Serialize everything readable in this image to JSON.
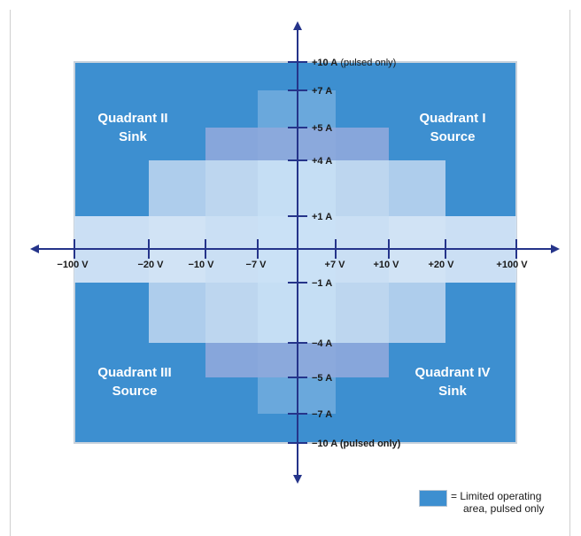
{
  "quadrants": {
    "q1": [
      "Quadrant I",
      "Source"
    ],
    "q2": [
      "Quadrant II",
      "Sink"
    ],
    "q3": [
      "Quadrant III",
      "Source"
    ],
    "q4": [
      "Quadrant IV",
      "Sink"
    ]
  },
  "x_ticks": [
    "−100 V",
    "−20 V",
    "−10 V",
    "−7 V",
    "+7 V",
    "+10 V",
    "+20 V",
    "+100 V"
  ],
  "y_ticks": {
    "p10": "+10 A",
    "p10_note": " (pulsed only)",
    "p7": "+7 A",
    "p5": "+5 A",
    "p4": "+4 A",
    "p1": "+1 A",
    "m1": "−1 A",
    "m4": "−4 A",
    "m5": "−5 A",
    "m7": "−7 A",
    "m10": "−10 A (pulsed only)"
  },
  "legend": {
    "line1": "= Limited operating",
    "line2": "area, pulsed only"
  },
  "colors": {
    "pulsed_area": "#3d8fd0",
    "axis": "#25348a"
  }
}
